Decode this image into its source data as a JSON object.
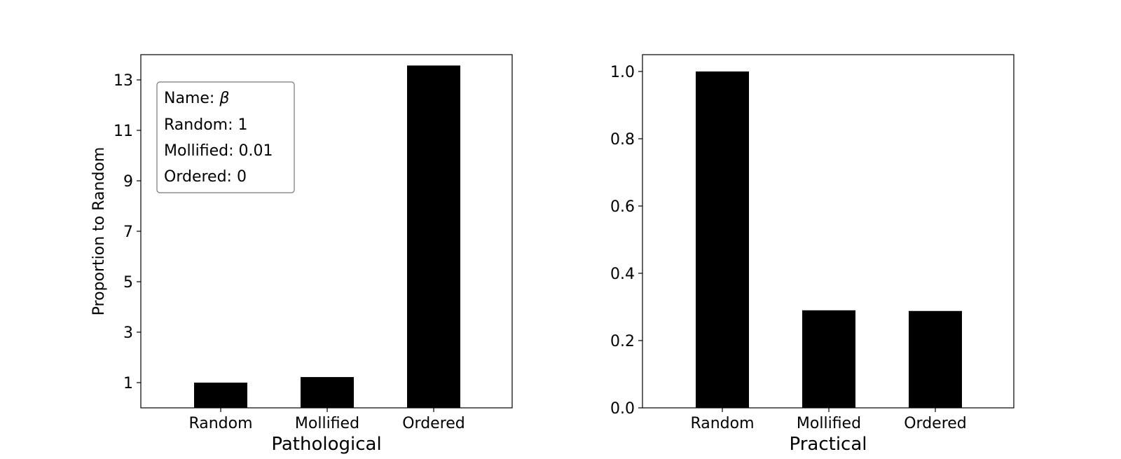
{
  "chart_data": [
    {
      "type": "bar",
      "categories": [
        "Random",
        "Mollified",
        "Ordered"
      ],
      "values": [
        1.0,
        1.22,
        13.57
      ],
      "xlabel": "Pathological",
      "ylabel": "Proportion to Random",
      "ylim": [
        0,
        14
      ],
      "yticks": [
        1,
        3,
        5,
        7,
        9,
        11,
        13
      ],
      "ytick_labels": [
        "1",
        "3",
        "5",
        "7",
        "9",
        "11",
        "13"
      ],
      "bar_color": "#000000",
      "grid": false,
      "legend_placement": "top-left",
      "annotation": {
        "name_label": "Name: ",
        "name_symbol": "β",
        "lines": [
          "Random: 1",
          "Mollified: 0.01",
          "Ordered: 0"
        ]
      }
    },
    {
      "type": "bar",
      "categories": [
        "Random",
        "Mollified",
        "Ordered"
      ],
      "values": [
        1.0,
        0.29,
        0.288
      ],
      "xlabel": "Practical",
      "ylabel": "",
      "ylim": [
        0,
        1.05
      ],
      "yticks": [
        0.0,
        0.2,
        0.4,
        0.6,
        0.8,
        1.0
      ],
      "ytick_labels": [
        "0.0",
        "0.2",
        "0.4",
        "0.6",
        "0.8",
        "1.0"
      ],
      "bar_color": "#000000",
      "grid": false
    }
  ]
}
